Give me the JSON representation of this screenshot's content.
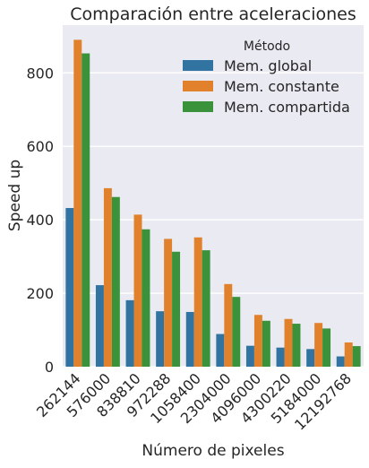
{
  "chart_data": {
    "type": "bar",
    "title": "Comparación entre aceleraciones",
    "xlabel": "Número de pixeles",
    "ylabel": "Speed up",
    "ylim": [
      0,
      930
    ],
    "yticks": [
      0,
      200,
      400,
      600,
      800
    ],
    "grid": true,
    "legend": {
      "title": "Método",
      "placement": "top-right"
    },
    "categories": [
      "262144",
      "576000",
      "838810",
      "972288",
      "1058400",
      "2304000",
      "4096000",
      "4300220",
      "5184000",
      "12192768"
    ],
    "series": [
      {
        "name": "Mem. global",
        "color": "#3274a1",
        "values": [
          432,
          222,
          181,
          151,
          149,
          89,
          57,
          52,
          48,
          28
        ]
      },
      {
        "name": "Mem. constante",
        "color": "#e1812c",
        "values": [
          890,
          486,
          414,
          348,
          352,
          225,
          141,
          130,
          119,
          66
        ]
      },
      {
        "name": "Mem. compartida",
        "color": "#3a923a",
        "values": [
          853,
          462,
          374,
          313,
          317,
          190,
          125,
          117,
          104,
          56
        ]
      }
    ]
  }
}
